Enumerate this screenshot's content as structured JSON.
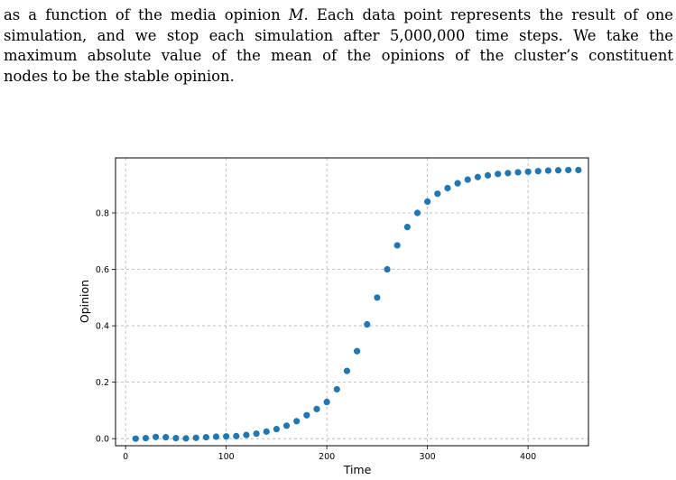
{
  "paragraph": {
    "line1_pre": "as a function of the media opinion ",
    "line1_math": "M",
    "line1_post": ". Each data point represents the result of one",
    "line2": "simulation, and we stop each simulation after 5,000,000 time steps. We take the",
    "line3": "maximum absolute value of the mean of the opinions of the cluster’s constituent",
    "line4": "nodes to be the stable opinion."
  },
  "chart_data": {
    "type": "scatter",
    "xlabel": "Time",
    "ylabel": "Opinion",
    "xlim": [
      -10,
      460
    ],
    "ylim": [
      -0.025,
      0.995
    ],
    "xticks": [
      0,
      100,
      200,
      300,
      400
    ],
    "yticks": [
      0.0,
      0.2,
      0.4,
      0.6,
      0.8
    ],
    "xtick_labels": [
      "0",
      "100",
      "200",
      "300",
      "400"
    ],
    "ytick_labels": [
      "0.0",
      "0.2",
      "0.4",
      "0.6",
      "0.8"
    ],
    "grid": true,
    "point_color": "#1f77b4",
    "x": [
      10,
      20,
      30,
      40,
      50,
      60,
      70,
      80,
      90,
      100,
      110,
      120,
      130,
      140,
      150,
      160,
      170,
      180,
      190,
      200,
      210,
      220,
      230,
      240,
      250,
      260,
      270,
      280,
      290,
      300,
      310,
      320,
      330,
      340,
      350,
      360,
      370,
      380,
      390,
      400,
      410,
      420,
      430,
      440,
      450
    ],
    "y": [
      0.0,
      0.002,
      0.006,
      0.005,
      0.002,
      0.001,
      0.003,
      0.005,
      0.007,
      0.008,
      0.009,
      0.013,
      0.018,
      0.025,
      0.034,
      0.046,
      0.062,
      0.083,
      0.105,
      0.13,
      0.175,
      0.24,
      0.31,
      0.405,
      0.5,
      0.6,
      0.685,
      0.75,
      0.8,
      0.84,
      0.868,
      0.888,
      0.905,
      0.918,
      0.927,
      0.933,
      0.938,
      0.941,
      0.944,
      0.946,
      0.948,
      0.95,
      0.951,
      0.952,
      0.952
    ]
  }
}
